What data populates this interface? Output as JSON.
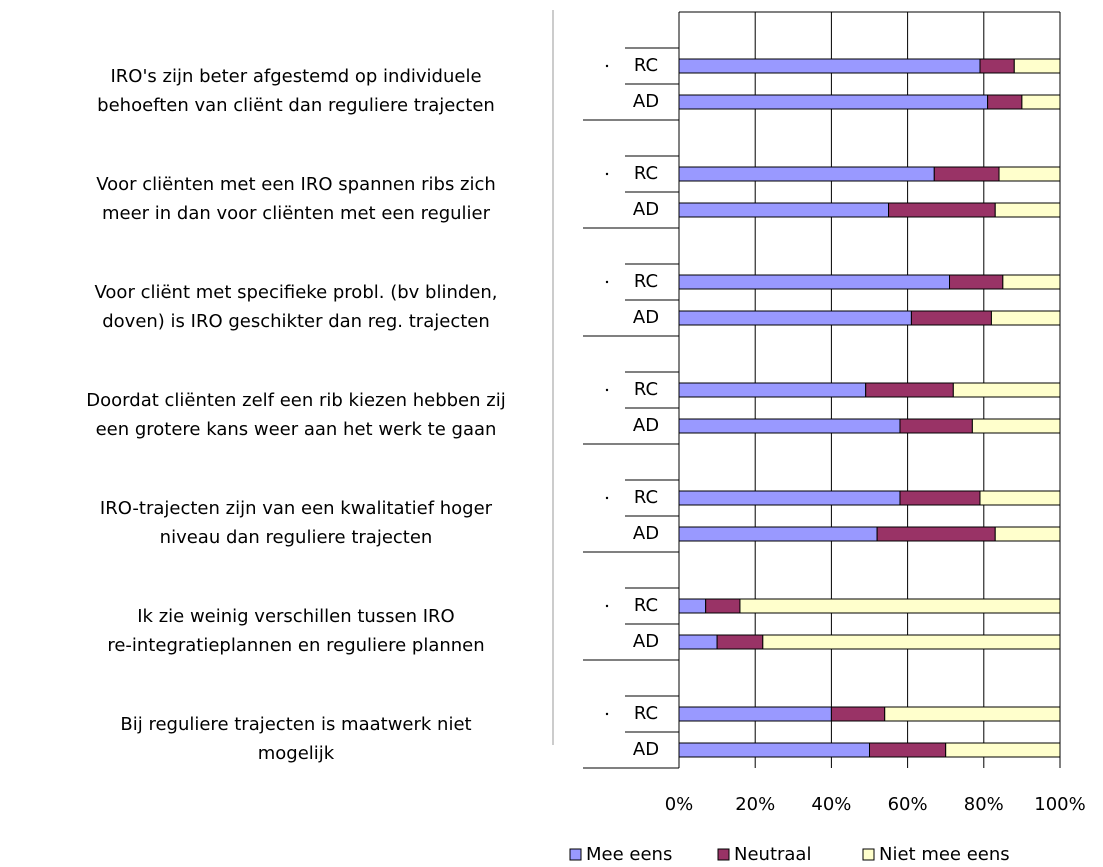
{
  "chart_data": {
    "type": "stacked-bar-horizontal",
    "groups": [
      [
        "IRO's zijn beter afgestemd op individuele",
        "behoeften van cliënt dan reguliere trajecten"
      ],
      [
        "Voor cliënten met een IRO spannen ribs zich",
        "meer in dan voor cliënten met een regulier"
      ],
      [
        "Voor cliënt met specifieke probl. (bv blinden,",
        "doven) is IRO geschikter dan reg. trajecten"
      ],
      [
        "Doordat cliënten zelf een rib kiezen hebben zij",
        "een grotere kans weer aan het werk te gaan"
      ],
      [
        "IRO-trajecten zijn van een kwalitatief hoger",
        "niveau dan reguliere trajecten"
      ],
      [
        "Ik zie weinig verschillen tussen IRO",
        "re-integratieplannen en reguliere plannen"
      ],
      [
        "Bij reguliere trajecten is maatwerk niet",
        "mogelijk"
      ]
    ],
    "categories": [
      "RC",
      "AD",
      "RC",
      "AD",
      "RC",
      "AD",
      "RC",
      "AD",
      "RC",
      "AD",
      "RC",
      "AD",
      "RC",
      "AD"
    ],
    "series": [
      {
        "name": "Mee eens",
        "color": "#9999ff",
        "values": [
          79,
          81,
          67,
          55,
          71,
          61,
          49,
          58,
          58,
          52,
          7,
          10,
          40,
          50
        ]
      },
      {
        "name": "Neutraal",
        "color": "#993366",
        "values": [
          9,
          9,
          17,
          28,
          14,
          21,
          23,
          19,
          21,
          31,
          9,
          12,
          14,
          20
        ]
      },
      {
        "name": "Niet mee eens",
        "color": "#ffffcc",
        "values": [
          12,
          10,
          16,
          17,
          15,
          18,
          28,
          23,
          21,
          17,
          84,
          78,
          46,
          30
        ]
      }
    ],
    "xlim": [
      0,
      100
    ],
    "xticks": [
      {
        "value": 0,
        "label": "0%"
      },
      {
        "value": 20,
        "label": "20%"
      },
      {
        "value": 40,
        "label": "40%"
      },
      {
        "value": 60,
        "label": "60%"
      },
      {
        "value": 80,
        "label": "80%"
      },
      {
        "value": 100,
        "label": "100%"
      }
    ],
    "grid": true,
    "legend": "bottom"
  }
}
